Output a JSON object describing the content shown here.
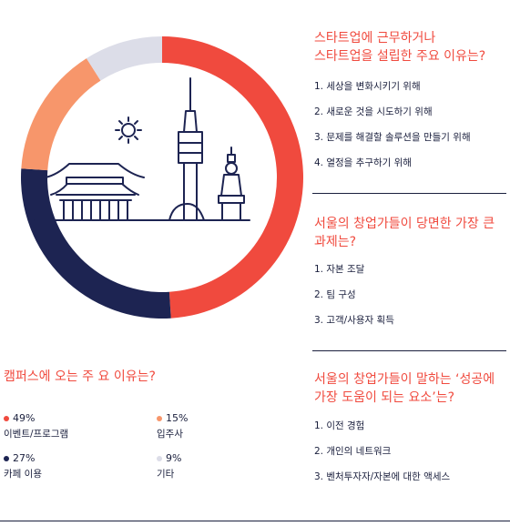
{
  "chart_data": {
    "type": "pie",
    "variant": "donut",
    "title": "캠퍼스에 오는 주 요 이유는?",
    "slices": [
      {
        "label": "이벤트/프로그램",
        "value": 49,
        "display": "49%",
        "color": "#f04a3e"
      },
      {
        "label": "카페 이용",
        "value": 27,
        "display": "27%",
        "color": "#1d2452"
      },
      {
        "label": "입주사",
        "value": 15,
        "display": "15%",
        "color": "#f7966b"
      },
      {
        "label": "기타",
        "value": 9,
        "display": "9%",
        "color": "#dcdde8"
      }
    ]
  },
  "illustration": {
    "icon": "seoul-landmarks-icon",
    "stroke_color": "#1d2452"
  },
  "sections": {
    "reasons": {
      "title_line1": "스타트업에 근무하거나",
      "title_line2": "스타트업을 설립한 주요 이유는?",
      "items": [
        "1. 세상을 변화시키기 위해",
        "2. 새로운 것을 시도하기 위해",
        "3. 문제를 해결할 솔루션을 만들기 위해",
        "4. 열정을 추구하기 위해"
      ]
    },
    "challenges": {
      "title_line1": "서울의 창업가들이 당면한 가장 큰",
      "title_line2": "과제는?",
      "items": [
        "1. 자본 조달",
        "2. 팀 구성",
        "3. 고객/사용자 획득"
      ]
    },
    "success": {
      "title_line1": "서울의 창업가들이 말하는 ‘성공에",
      "title_line2": "가장 도움이 되는 요소’는?",
      "items": [
        "1. 이전 경험",
        "2. 개인의 네트워크",
        "3. 벤처투자자/자본에 대한 액세스"
      ]
    }
  },
  "colors": {
    "accent": "#f04a3e",
    "navy": "#1d2452",
    "orange": "#f7966b",
    "grey": "#dcdde8"
  }
}
